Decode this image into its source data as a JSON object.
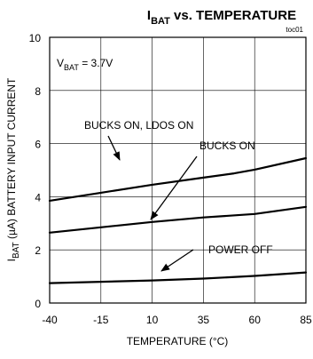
{
  "chart_data": {
    "type": "line",
    "title_main": "I",
    "title_sub": "BAT",
    "title_rest": " vs. TEMPERATURE",
    "figure_id": "toc01",
    "condition_main": "V",
    "condition_sub": "BAT",
    "condition_rest": " = 3.7V",
    "xlabel": "TEMPERATURE (°C)",
    "ylabel_main": "I",
    "ylabel_sub": "BAT",
    "ylabel_rest": " (µA) BATTERY INPUT CURRENT",
    "xlim": [
      -40,
      85
    ],
    "ylim": [
      0,
      10
    ],
    "xticks": [
      -40,
      -15,
      10,
      35,
      60,
      85
    ],
    "yticks": [
      0,
      2,
      4,
      6,
      8,
      10
    ],
    "xtick_labels": [
      "-40",
      "-15",
      "10",
      "35",
      "60",
      "85"
    ],
    "ytick_labels": [
      "0",
      "2",
      "4",
      "6",
      "8",
      "10"
    ],
    "grid": true,
    "series": [
      {
        "name": "BUCKS ON, LDOS ON",
        "color": "#000000",
        "x": [
          -40,
          -15,
          10,
          35,
          50,
          60,
          85
        ],
        "y": [
          3.85,
          4.15,
          4.45,
          4.72,
          4.88,
          5.02,
          5.45
        ]
      },
      {
        "name": "BUCKS ON",
        "color": "#000000",
        "x": [
          -40,
          -15,
          10,
          35,
          60,
          85
        ],
        "y": [
          2.65,
          2.85,
          3.05,
          3.22,
          3.35,
          3.62
        ]
      },
      {
        "name": "POWER OFF",
        "color": "#000000",
        "x": [
          -40,
          -15,
          10,
          35,
          60,
          85
        ],
        "y": [
          0.75,
          0.8,
          0.85,
          0.92,
          1.02,
          1.15
        ]
      }
    ]
  }
}
